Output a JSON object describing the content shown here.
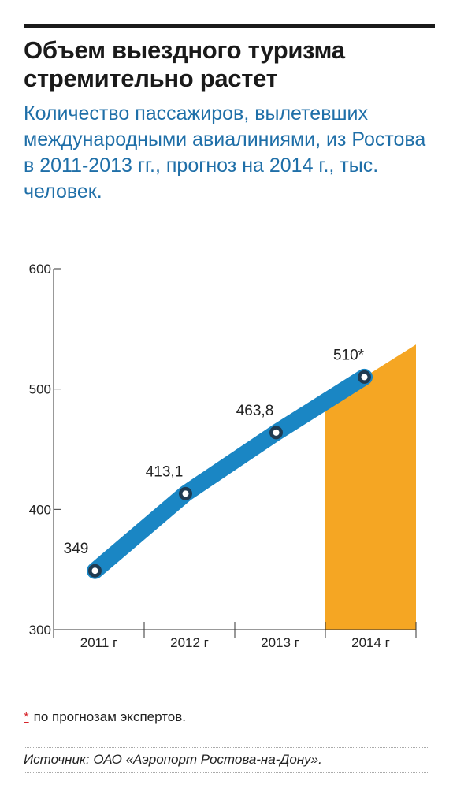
{
  "header": {
    "title": "Объем выездного туризма стремительно растет",
    "subtitle": "Количество пассажиров, вылетевших международными авиалиниями, из Ростова в 2011-2013 гг., прогноз на 2014 г., тыс. человек."
  },
  "chart_data": {
    "type": "line",
    "categories": [
      "2011 г",
      "2012 г",
      "2013 г",
      "2014 г"
    ],
    "values": [
      349,
      413.1,
      463.8,
      510
    ],
    "data_labels": [
      "349",
      "413,1",
      "463,8",
      "510*"
    ],
    "forecast_category": "2014 г",
    "ylim": [
      300,
      600
    ],
    "yticks": [
      300,
      400,
      500,
      600
    ],
    "ytick_labels": [
      "300",
      "400",
      "500",
      "600"
    ],
    "grid": false,
    "colors": {
      "line": "#1a86c4",
      "forecast_fill": "#f5a623",
      "marker_ring": "#1f3b52",
      "marker_fill": "#ffffff"
    }
  },
  "footnote": {
    "marker": "*",
    "text": "по прогнозам экспертов."
  },
  "source": {
    "text": "Источник: ОАО «Аэропорт Ростова-на-Дону»."
  }
}
